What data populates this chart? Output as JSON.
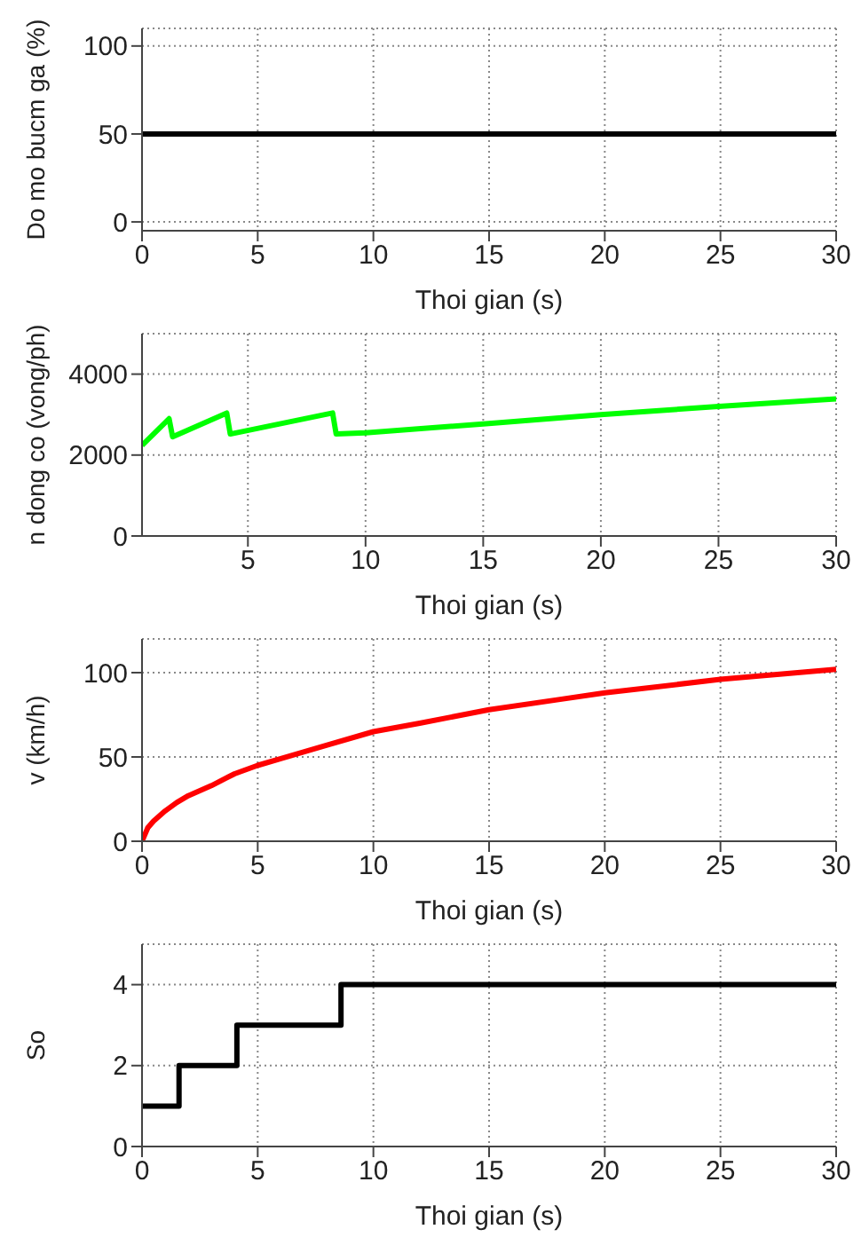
{
  "chart_data": [
    {
      "type": "line",
      "xlabel": "Thoi gian (s)",
      "ylabel": "Do mo bucm ga (%)",
      "x": [
        0,
        30
      ],
      "series": [
        {
          "color": "#000000",
          "values": [
            50,
            50
          ]
        }
      ],
      "xlim": [
        0,
        30
      ],
      "xticks": [
        0,
        5,
        10,
        15,
        20,
        25,
        30
      ],
      "ylim": [
        -5,
        110
      ],
      "yticks": [
        0,
        50,
        100
      ],
      "grid": true
    },
    {
      "type": "line",
      "xlabel": "Thoi gian (s)",
      "ylabel": "n dong co (vong/ph)",
      "x": [
        0.5,
        1.65,
        1.8,
        4.1,
        4.25,
        8.6,
        8.75,
        10,
        15,
        20,
        25,
        30
      ],
      "series": [
        {
          "color": "#00ff00",
          "values": [
            2240,
            2900,
            2450,
            3040,
            2520,
            3040,
            2520,
            2550,
            2770,
            3000,
            3200,
            3390
          ]
        }
      ],
      "xlim": [
        0.5,
        30
      ],
      "xticks": [
        5,
        10,
        15,
        20,
        25,
        30
      ],
      "ylim": [
        0,
        5000
      ],
      "yticks": [
        0,
        2000,
        4000
      ],
      "grid": true
    },
    {
      "type": "line",
      "xlabel": "Thoi gian (s)",
      "ylabel": "v (km/h)",
      "x": [
        0,
        0.25,
        0.5,
        1,
        1.5,
        2,
        3,
        4,
        5,
        6,
        8,
        10,
        12,
        15,
        18,
        20,
        25,
        30
      ],
      "series": [
        {
          "color": "#ff0000",
          "values": [
            0,
            8,
            12,
            18,
            23,
            27,
            33,
            40,
            45,
            49,
            57,
            65,
            70,
            78,
            84,
            88,
            96,
            102
          ]
        }
      ],
      "xlim": [
        0,
        30
      ],
      "xticks": [
        0,
        5,
        10,
        15,
        20,
        25,
        30
      ],
      "ylim": [
        0,
        120
      ],
      "yticks": [
        0,
        50,
        100
      ],
      "grid": true
    },
    {
      "type": "step",
      "xlabel": "Thoi gian (s)",
      "ylabel": "So",
      "x": [
        0,
        1.6,
        4.1,
        8.6,
        30
      ],
      "series": [
        {
          "color": "#000000",
          "values": [
            1,
            2,
            3,
            4,
            4
          ]
        }
      ],
      "xlim": [
        0,
        30
      ],
      "xticks": [
        0,
        5,
        10,
        15,
        20,
        25,
        30
      ],
      "ylim": [
        0,
        5
      ],
      "yticks": [
        0,
        2,
        4
      ],
      "grid": true
    }
  ]
}
